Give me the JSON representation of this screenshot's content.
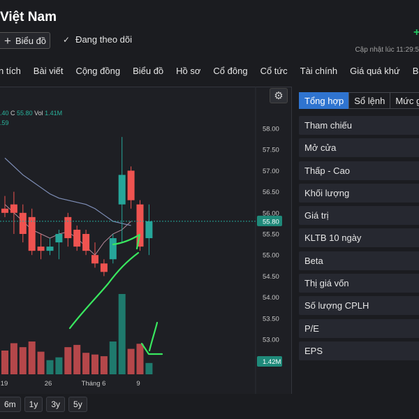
{
  "header": {
    "title": "Việt Nam",
    "plus_corner": "+",
    "chart_button_label": "Biểu đồ",
    "follow_label": "Đang theo dõi",
    "updated_text": "Cập nhật lúc  11:29:5"
  },
  "nav": {
    "items": [
      "n tích",
      "Bài viết",
      "Cộng đồng",
      "Biểu đồ",
      "Hồ sơ",
      "Cổ đông",
      "Cổ tức",
      "Tài chính",
      "Giá quá khứ",
      "Báo cáo"
    ]
  },
  "chart_header": {
    "ohlc_prefix": ".40",
    "c_label": "C",
    "c_value": "55.80",
    "vol_label": "Vol",
    "vol_value": "1.41M",
    "second_line": ".59"
  },
  "chart_data": {
    "type": "candlestick",
    "price_axis": {
      "ticks": [
        "58.00",
        "57.50",
        "57.00",
        "56.50",
        "56.00",
        "55.50",
        "55.00",
        "54.50",
        "54.00",
        "53.50",
        "53.00"
      ],
      "last_price_label": "55.80",
      "last_price": 55.8,
      "range": [
        52.55,
        58.1
      ]
    },
    "volume_label": "1.42M",
    "x_ticks": [
      "19",
      "26",
      "Tháng 6",
      "9"
    ],
    "ma_line": [
      57.3,
      57.1,
      56.9,
      56.75,
      56.6,
      56.45,
      56.35,
      56.3,
      56.25,
      56.2,
      56.1,
      55.95,
      55.8,
      55.75,
      55.7
    ],
    "ma_line_2": [
      56.2,
      56.0,
      55.8,
      55.6,
      55.5,
      55.4,
      55.5,
      55.55,
      55.4,
      55.2,
      55.0,
      55.3,
      55.5,
      55.6,
      55.8
    ],
    "candles": [
      {
        "o": 56.1,
        "h": 56.4,
        "l": 55.9,
        "c": 56.0,
        "v": 0.42,
        "dir": "down"
      },
      {
        "o": 56.2,
        "h": 56.5,
        "l": 55.5,
        "c": 56.0,
        "v": 0.55,
        "dir": "down"
      },
      {
        "o": 56.0,
        "h": 56.2,
        "l": 55.3,
        "c": 55.5,
        "v": 0.48,
        "dir": "down"
      },
      {
        "o": 55.9,
        "h": 56.1,
        "l": 55.0,
        "c": 55.1,
        "v": 0.58,
        "dir": "down"
      },
      {
        "o": 55.2,
        "h": 55.5,
        "l": 54.9,
        "c": 55.1,
        "v": 0.4,
        "dir": "down"
      },
      {
        "o": 55.1,
        "h": 55.4,
        "l": 55.0,
        "c": 55.2,
        "v": 0.25,
        "dir": "up"
      },
      {
        "o": 55.3,
        "h": 55.6,
        "l": 54.9,
        "c": 55.5,
        "v": 0.3,
        "dir": "up"
      },
      {
        "o": 55.9,
        "h": 56.0,
        "l": 55.2,
        "c": 55.4,
        "v": 0.48,
        "dir": "down"
      },
      {
        "o": 55.6,
        "h": 55.7,
        "l": 55.1,
        "c": 55.2,
        "v": 0.52,
        "dir": "down"
      },
      {
        "o": 55.5,
        "h": 55.6,
        "l": 55.0,
        "c": 55.1,
        "v": 0.38,
        "dir": "down"
      },
      {
        "o": 55.0,
        "h": 55.3,
        "l": 54.7,
        "c": 54.8,
        "v": 0.35,
        "dir": "down"
      },
      {
        "o": 54.8,
        "h": 54.9,
        "l": 54.5,
        "c": 54.6,
        "v": 0.32,
        "dir": "down"
      },
      {
        "o": 54.9,
        "h": 55.5,
        "l": 54.8,
        "c": 55.4,
        "v": 0.58,
        "dir": "up"
      },
      {
        "o": 56.2,
        "h": 57.8,
        "l": 55.3,
        "c": 56.9,
        "v": 1.42,
        "dir": "up"
      },
      {
        "o": 57.0,
        "h": 57.1,
        "l": 56.1,
        "c": 56.3,
        "v": 0.45,
        "dir": "down"
      },
      {
        "o": 56.2,
        "h": 56.3,
        "l": 55.1,
        "c": 55.2,
        "v": 0.54,
        "dir": "down"
      },
      {
        "o": 55.4,
        "h": 56.2,
        "l": 55.0,
        "c": 55.8,
        "v": 0.2,
        "dir": "up"
      }
    ],
    "colors": {
      "up": "#26a69a",
      "down": "#ef5350",
      "up_vol": "#1f7a6d",
      "down_vol": "#b5474a",
      "ma": "#7f8fb8",
      "ma2": "#b58a9a",
      "annot": "#39e75f"
    }
  },
  "range_buttons": [
    "6m",
    "1y",
    "3y",
    "5y"
  ],
  "side": {
    "tabs": [
      "Tổng hợp",
      "Sổ lệnh",
      "Mức g"
    ],
    "rows": [
      "Tham chiếu",
      "Mở cửa",
      "Thấp - Cao",
      "Khối lượng",
      "Giá trị",
      "KLTB 10 ngày",
      "Beta",
      "Thị giá vốn",
      "Số lượng CPLH",
      "P/E",
      "EPS"
    ]
  }
}
